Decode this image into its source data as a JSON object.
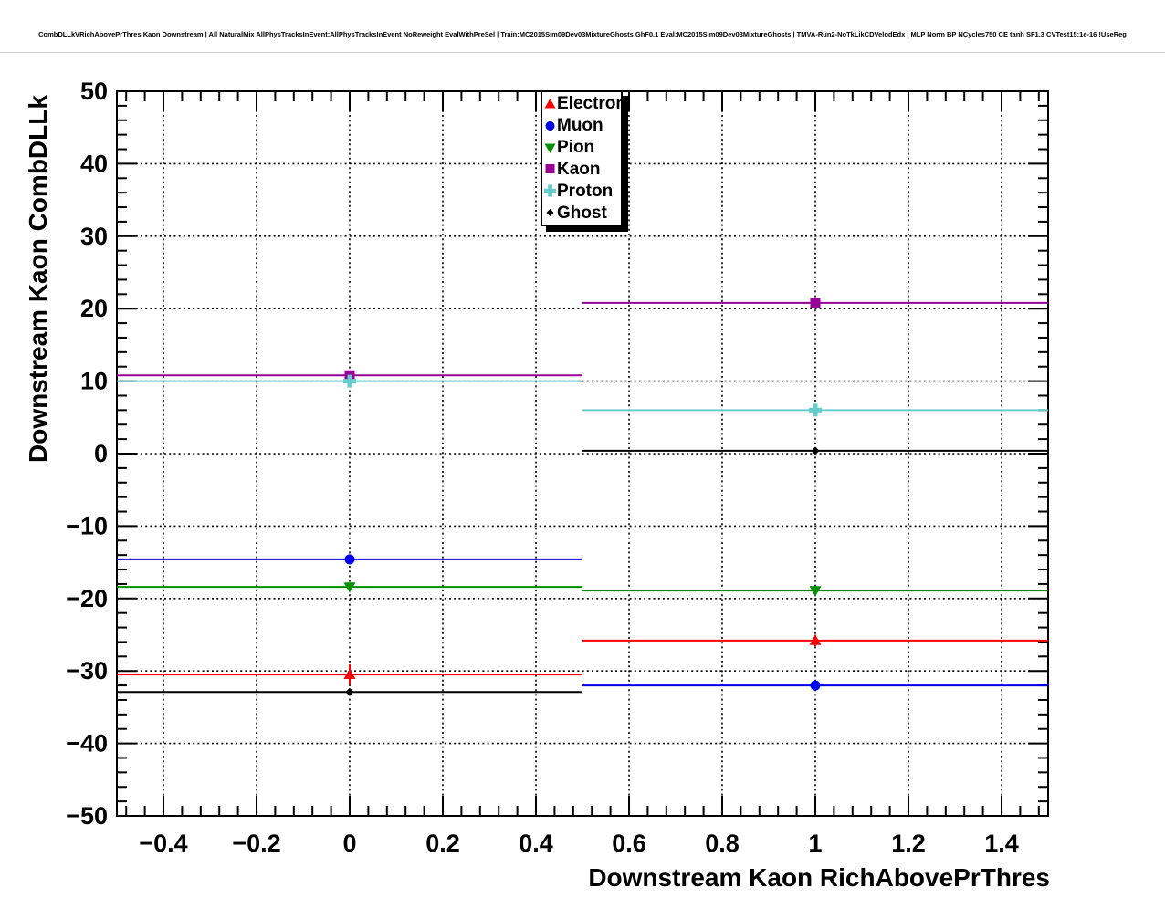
{
  "chart_data": {
    "type": "scatter",
    "title": "CombDLLkVRichAbovePrThres Kaon Downstream | All NaturalMix AllPhysTracksInEvent:AllPhysTracksInEvent NoReweight EvalWithPreSel | Train:MC2015Sim09Dev03MixtureGhosts GhF0.1 Eval:MC2015Sim09Dev03MixtureGhosts | TMVA-Run2-NoTkLikCDVelodEdx | MLP Norm BP NCycles750 CE tanh SF1.3 CVTest15:1e-16 !UseReg",
    "xlabel": "Downstream Kaon RichAbovePrThres",
    "ylabel": "Downstream Kaon CombDLLk",
    "xlim": [
      -0.5,
      1.5
    ],
    "ylim": [
      -50,
      50
    ],
    "grid": "dotted",
    "legend_position": "top-center",
    "x_ticks": {
      "values": [
        -0.4,
        -0.2,
        0,
        0.2,
        0.4,
        0.6,
        0.8,
        1,
        1.2,
        1.4
      ],
      "labels": [
        "−0.4",
        "−0.2",
        "0",
        "0.2",
        "0.4",
        "0.6",
        "0.8",
        "1",
        "1.2",
        "1.4"
      ],
      "minor_step": 0.04
    },
    "y_ticks": {
      "values": [
        -50,
        -40,
        -30,
        -20,
        -10,
        0,
        10,
        20,
        30,
        40,
        50
      ],
      "labels": [
        "−50",
        "−40",
        "−30",
        "−20",
        "−10",
        "0",
        "10",
        "20",
        "30",
        "40",
        "50"
      ],
      "minor_step": 2
    },
    "x": [
      0,
      1
    ],
    "x_bin_halfwidth": 0.5,
    "series": [
      {
        "name": "Electron",
        "marker": "triangle-up",
        "color": "#ff0000",
        "values": [
          -30.5,
          -25.8
        ],
        "yerr": [
          1.4,
          0.8
        ]
      },
      {
        "name": "Muon",
        "marker": "circle",
        "color": "#0000ee",
        "values": [
          -14.6,
          -32.0
        ],
        "yerr": [
          0,
          0
        ]
      },
      {
        "name": "Pion",
        "marker": "triangle-down",
        "color": "#008f00",
        "values": [
          -18.4,
          -18.9
        ],
        "yerr": [
          0,
          0
        ]
      },
      {
        "name": "Kaon",
        "marker": "square",
        "color": "#990099",
        "values": [
          10.8,
          20.8
        ],
        "yerr": [
          0,
          0
        ]
      },
      {
        "name": "Proton",
        "marker": "cross",
        "color": "#66cccc",
        "values": [
          10.0,
          6.0
        ],
        "yerr": [
          0,
          0
        ]
      },
      {
        "name": "Ghost",
        "marker": "diamond",
        "color": "#000000",
        "values": [
          -32.9,
          0.4
        ],
        "yerr": [
          0,
          0
        ]
      }
    ]
  },
  "colors": {
    "frame": "#000000",
    "grid": "#000000",
    "background": "#ffffff"
  }
}
